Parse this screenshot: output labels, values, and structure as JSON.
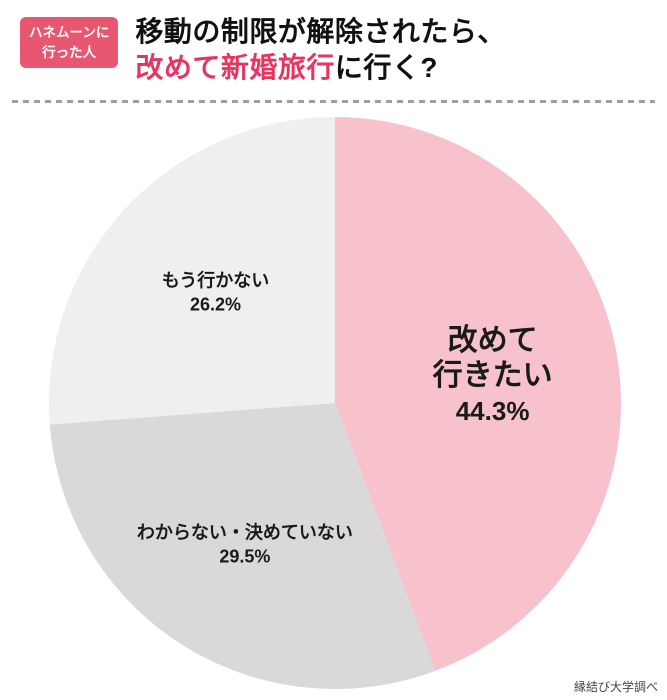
{
  "header": {
    "badge": {
      "line1": "ハネムーンに",
      "line2": "行った人",
      "bg": "#e8566f",
      "text_color": "#ffffff"
    },
    "title": {
      "line1": "移動の制限が解除されたら、",
      "line2_accent": "改めて新婚旅行",
      "line2_rest": "に行く?",
      "accent_color": "#e73562",
      "text_color": "#111111"
    }
  },
  "chart_data": {
    "type": "pie",
    "title": "移動の制限が解除されたら、改めて新婚旅行に行く?",
    "start_angle_deg": 0,
    "direction": "clockwise",
    "legend_position": "none",
    "labels_inside": true,
    "slices": [
      {
        "label": "改めて行きたい",
        "label_lines": [
          "改めて",
          "行きたい"
        ],
        "value": 44.3,
        "percent_label": "44.3%",
        "color": "#f8c2cc",
        "emphasis": true,
        "label_r": 0.56
      },
      {
        "label": "わからない・決めていない",
        "label_lines": [
          "わからない・決めていない"
        ],
        "value": 29.5,
        "percent_label": "29.5%",
        "color": "#d9d9d9",
        "emphasis": false,
        "label_r": 0.585
      },
      {
        "label": "もう行かない",
        "label_lines": [
          "もう行かない"
        ],
        "value": 26.2,
        "percent_label": "26.2%",
        "color": "#efefef",
        "emphasis": false,
        "label_r": 0.57
      }
    ]
  },
  "footer": {
    "source": "縁結び大学調べ"
  }
}
